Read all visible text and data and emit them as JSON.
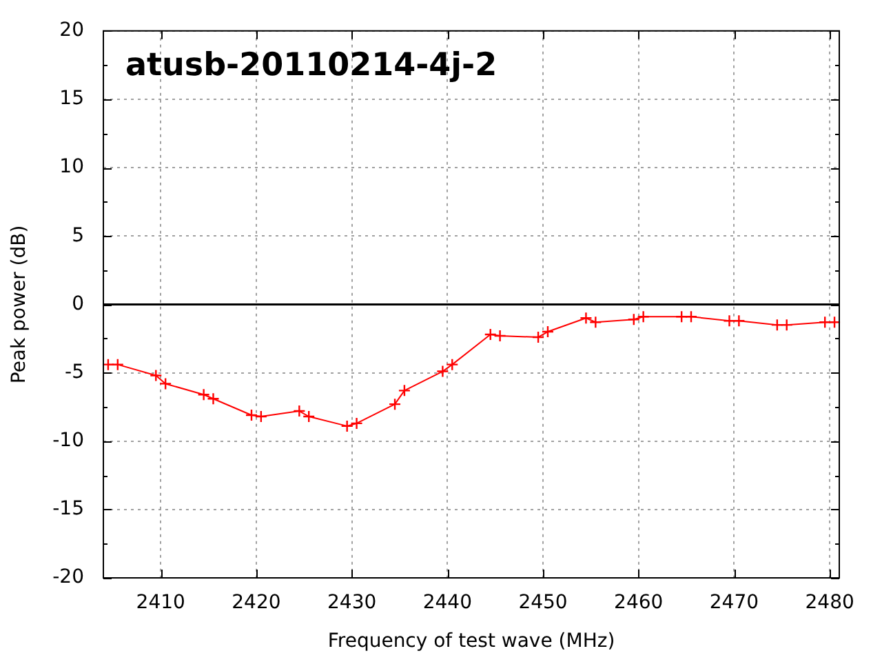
{
  "chart_data": {
    "type": "line",
    "title": "atusb-20110214-4j-2",
    "xlabel": "Frequency of test wave (MHz)",
    "ylabel": "Peak power (dB)",
    "x": [
      2404.5,
      2405.5,
      2409.5,
      2410.5,
      2414.5,
      2415.5,
      2419.5,
      2420.5,
      2424.5,
      2425.5,
      2429.5,
      2430.5,
      2434.5,
      2435.5,
      2439.5,
      2440.5,
      2444.5,
      2445.5,
      2449.5,
      2450.5,
      2454.5,
      2455.5,
      2459.5,
      2460.5,
      2464.5,
      2465.5,
      2469.5,
      2470.5,
      2474.5,
      2475.5,
      2479.5,
      2480.5
    ],
    "series": [
      {
        "color": "#ff0000",
        "values": [
          -4.4,
          -4.4,
          -5.2,
          -5.8,
          -6.6,
          -6.9,
          -8.1,
          -8.2,
          -7.8,
          -8.2,
          -8.9,
          -8.7,
          -7.3,
          -6.3,
          -4.9,
          -4.4,
          -2.2,
          -2.3,
          -2.4,
          -2.0,
          -1.0,
          -1.3,
          -1.1,
          -0.9,
          -0.9,
          -0.9,
          -1.2,
          -1.2,
          -1.5,
          -1.5,
          -1.3,
          -1.3
        ]
      }
    ],
    "xlim": [
      2404,
      2481
    ],
    "ylim": [
      -20,
      20
    ],
    "xticks": [
      2410,
      2420,
      2430,
      2440,
      2450,
      2460,
      2470,
      2480
    ],
    "yticks": [
      -20,
      {
        "value": -17.5,
        "label": null
      },
      -15,
      {
        "value": -12.5,
        "label": null
      },
      -10,
      {
        "value": -7.5,
        "label": null
      },
      -5,
      {
        "value": -2.5,
        "label": null
      },
      0,
      {
        "value": 2.5,
        "label": null
      },
      5,
      {
        "value": 7.5,
        "label": null
      },
      10,
      {
        "value": 12.5,
        "label": null
      },
      15,
      {
        "value": 17.5,
        "label": null
      },
      20
    ],
    "grid": true,
    "marker": "cross",
    "line_style": "solid",
    "ref_lines": [
      {
        "axis": "y",
        "value": 0,
        "color": "#000000"
      }
    ]
  }
}
